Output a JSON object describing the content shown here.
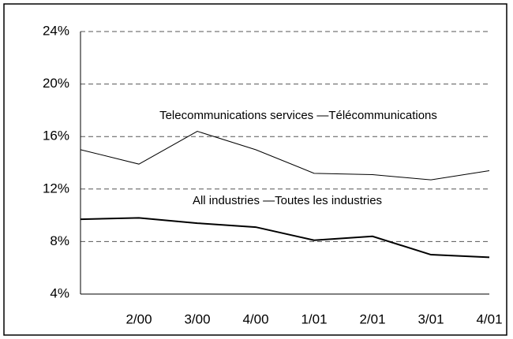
{
  "chart_data": {
    "type": "line",
    "categories": [
      null,
      "2/00",
      "3/00",
      "4/00",
      "1/01",
      "2/01",
      "3/01",
      "4/01"
    ],
    "series": [
      {
        "name": "Telecommunications services —Télécommunications",
        "color": "#000000",
        "values": [
          15.0,
          13.9,
          16.4,
          15.0,
          13.2,
          13.1,
          12.7,
          13.4
        ]
      },
      {
        "name": "All industries —Toutes les industries",
        "color": "#000000",
        "values": [
          9.7,
          9.8,
          9.4,
          9.1,
          8.1,
          8.4,
          7.0,
          6.8
        ]
      }
    ],
    "ylim": [
      4,
      24
    ],
    "yticks": [
      {
        "value": 4,
        "label": "4%"
      },
      {
        "value": 8,
        "label": "8%"
      },
      {
        "value": 12,
        "label": "12%"
      },
      {
        "value": 16,
        "label": "16%"
      },
      {
        "value": 20,
        "label": "20%"
      },
      {
        "value": 24,
        "label": "24%"
      }
    ],
    "grid": true
  }
}
